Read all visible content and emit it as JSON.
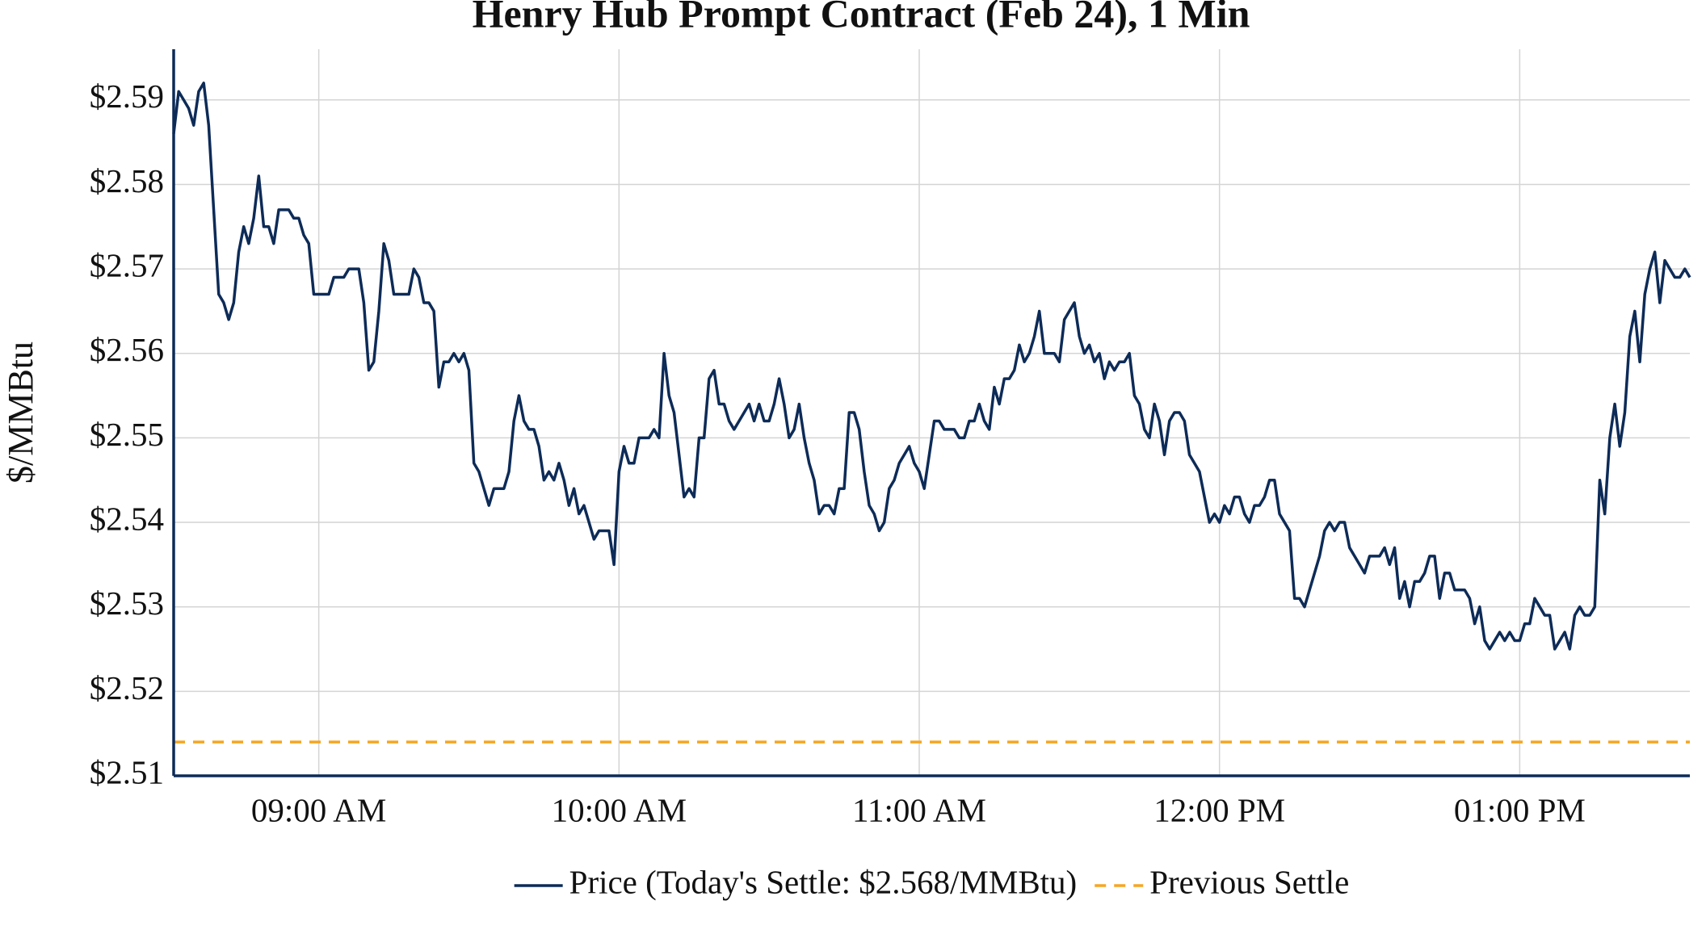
{
  "chart_data": {
    "type": "line",
    "title": "Henry Hub Prompt Contract (Feb 24), 1 Min",
    "y_label": "$/MMBtu",
    "x": [
      "08:31",
      "08:32",
      "08:33",
      "08:34",
      "08:35",
      "08:36",
      "08:37",
      "08:38",
      "08:39",
      "08:40",
      "08:41",
      "08:42",
      "08:43",
      "08:44",
      "08:45",
      "08:46",
      "08:47",
      "08:48",
      "08:49",
      "08:50",
      "08:51",
      "08:52",
      "08:53",
      "08:54",
      "08:55",
      "08:56",
      "08:57",
      "08:58",
      "08:59",
      "09:00",
      "09:01",
      "09:02",
      "09:03",
      "09:04",
      "09:05",
      "09:06",
      "09:07",
      "09:08",
      "09:09",
      "09:10",
      "09:11",
      "09:12",
      "09:13",
      "09:14",
      "09:15",
      "09:16",
      "09:17",
      "09:18",
      "09:19",
      "09:20",
      "09:21",
      "09:22",
      "09:23",
      "09:24",
      "09:25",
      "09:26",
      "09:27",
      "09:28",
      "09:29",
      "09:30",
      "09:31",
      "09:32",
      "09:33",
      "09:34",
      "09:35",
      "09:36",
      "09:37",
      "09:38",
      "09:39",
      "09:40",
      "09:41",
      "09:42",
      "09:43",
      "09:44",
      "09:45",
      "09:46",
      "09:47",
      "09:48",
      "09:49",
      "09:50",
      "09:51",
      "09:52",
      "09:53",
      "09:54",
      "09:55",
      "09:56",
      "09:57",
      "09:58",
      "09:59",
      "10:00",
      "10:01",
      "10:02",
      "10:03",
      "10:04",
      "10:05",
      "10:06",
      "10:07",
      "10:08",
      "10:09",
      "10:10",
      "10:11",
      "10:12",
      "10:13",
      "10:14",
      "10:15",
      "10:16",
      "10:17",
      "10:18",
      "10:19",
      "10:20",
      "10:21",
      "10:22",
      "10:23",
      "10:24",
      "10:25",
      "10:26",
      "10:27",
      "10:28",
      "10:29",
      "10:30",
      "10:31",
      "10:32",
      "10:33",
      "10:34",
      "10:35",
      "10:36",
      "10:37",
      "10:38",
      "10:39",
      "10:40",
      "10:41",
      "10:42",
      "10:43",
      "10:44",
      "10:45",
      "10:46",
      "10:47",
      "10:48",
      "10:49",
      "10:50",
      "10:51",
      "10:52",
      "10:53",
      "10:54",
      "10:55",
      "10:56",
      "10:57",
      "10:58",
      "10:59",
      "11:00",
      "11:01",
      "11:02",
      "11:03",
      "11:04",
      "11:05",
      "11:06",
      "11:07",
      "11:08",
      "11:09",
      "11:10",
      "11:11",
      "11:12",
      "11:13",
      "11:14",
      "11:15",
      "11:16",
      "11:17",
      "11:18",
      "11:19",
      "11:20",
      "11:21",
      "11:22",
      "11:23",
      "11:24",
      "11:25",
      "11:26",
      "11:27",
      "11:28",
      "11:29",
      "11:30",
      "11:31",
      "11:32",
      "11:33",
      "11:34",
      "11:35",
      "11:36",
      "11:37",
      "11:38",
      "11:39",
      "11:40",
      "11:41",
      "11:42",
      "11:43",
      "11:44",
      "11:45",
      "11:46",
      "11:47",
      "11:48",
      "11:49",
      "11:50",
      "11:51",
      "11:52",
      "11:53",
      "11:54",
      "11:55",
      "11:56",
      "11:57",
      "11:58",
      "11:59",
      "12:00",
      "12:01",
      "12:02",
      "12:03",
      "12:04",
      "12:05",
      "12:06",
      "12:07",
      "12:08",
      "12:09",
      "12:10",
      "12:11",
      "12:12",
      "12:13",
      "12:14",
      "12:15",
      "12:16",
      "12:17",
      "12:18",
      "12:19",
      "12:20",
      "12:21",
      "12:22",
      "12:23",
      "12:24",
      "12:25",
      "12:26",
      "12:27",
      "12:28",
      "12:29",
      "12:30",
      "12:31",
      "12:32",
      "12:33",
      "12:34",
      "12:35",
      "12:36",
      "12:37",
      "12:38",
      "12:39",
      "12:40",
      "12:41",
      "12:42",
      "12:43",
      "12:44",
      "12:45",
      "12:46",
      "12:47",
      "12:48",
      "12:49",
      "12:50",
      "12:51",
      "12:52",
      "12:53",
      "12:54",
      "12:55",
      "12:56",
      "12:57",
      "12:58",
      "12:59",
      "13:00",
      "13:01",
      "13:02",
      "13:03",
      "13:04",
      "13:05",
      "13:06",
      "13:07",
      "13:08",
      "13:09",
      "13:10",
      "13:11",
      "13:12",
      "13:13",
      "13:14",
      "13:15",
      "13:16",
      "13:17",
      "13:18",
      "13:19",
      "13:20",
      "13:21",
      "13:22",
      "13:23",
      "13:24",
      "13:25",
      "13:26",
      "13:27",
      "13:28",
      "13:29",
      "13:30",
      "13:31",
      "13:32",
      "13:33",
      "13:34"
    ],
    "series": [
      {
        "name": "Price (Today's Settle: $2.568/MMBtu)",
        "color": "#0d2b57",
        "values": [
          2.586,
          2.591,
          2.59,
          2.589,
          2.587,
          2.591,
          2.592,
          2.587,
          2.577,
          2.567,
          2.566,
          2.564,
          2.566,
          2.572,
          2.575,
          2.573,
          2.576,
          2.581,
          2.575,
          2.575,
          2.573,
          2.577,
          2.577,
          2.577,
          2.576,
          2.576,
          2.574,
          2.573,
          2.567,
          2.567,
          2.567,
          2.567,
          2.569,
          2.569,
          2.569,
          2.57,
          2.57,
          2.57,
          2.566,
          2.558,
          2.559,
          2.565,
          2.573,
          2.571,
          2.567,
          2.567,
          2.567,
          2.567,
          2.57,
          2.569,
          2.566,
          2.566,
          2.565,
          2.556,
          2.559,
          2.559,
          2.56,
          2.559,
          2.56,
          2.558,
          2.547,
          2.546,
          2.544,
          2.542,
          2.544,
          2.544,
          2.544,
          2.546,
          2.552,
          2.555,
          2.552,
          2.551,
          2.551,
          2.549,
          2.545,
          2.546,
          2.545,
          2.547,
          2.545,
          2.542,
          2.544,
          2.541,
          2.542,
          2.54,
          2.538,
          2.539,
          2.539,
          2.539,
          2.535,
          2.546,
          2.549,
          2.547,
          2.547,
          2.55,
          2.55,
          2.55,
          2.551,
          2.55,
          2.56,
          2.555,
          2.553,
          2.548,
          2.543,
          2.544,
          2.543,
          2.55,
          2.55,
          2.557,
          2.558,
          2.554,
          2.554,
          2.552,
          2.551,
          2.552,
          2.553,
          2.554,
          2.552,
          2.554,
          2.552,
          2.552,
          2.554,
          2.557,
          2.554,
          2.55,
          2.551,
          2.554,
          2.55,
          2.547,
          2.545,
          2.541,
          2.542,
          2.542,
          2.541,
          2.544,
          2.544,
          2.553,
          2.553,
          2.551,
          2.546,
          2.542,
          2.541,
          2.539,
          2.54,
          2.544,
          2.545,
          2.547,
          2.548,
          2.549,
          2.547,
          2.546,
          2.544,
          2.548,
          2.552,
          2.552,
          2.551,
          2.551,
          2.551,
          2.55,
          2.55,
          2.552,
          2.552,
          2.554,
          2.552,
          2.551,
          2.556,
          2.554,
          2.557,
          2.557,
          2.558,
          2.561,
          2.559,
          2.56,
          2.562,
          2.565,
          2.56,
          2.56,
          2.56,
          2.559,
          2.564,
          2.565,
          2.566,
          2.562,
          2.56,
          2.561,
          2.559,
          2.56,
          2.557,
          2.559,
          2.558,
          2.559,
          2.559,
          2.56,
          2.555,
          2.554,
          2.551,
          2.55,
          2.554,
          2.552,
          2.548,
          2.552,
          2.553,
          2.553,
          2.552,
          2.548,
          2.547,
          2.546,
          2.543,
          2.54,
          2.541,
          2.54,
          2.542,
          2.541,
          2.543,
          2.543,
          2.541,
          2.54,
          2.542,
          2.542,
          2.543,
          2.545,
          2.545,
          2.541,
          2.54,
          2.539,
          2.531,
          2.531,
          2.53,
          2.532,
          2.534,
          2.536,
          2.539,
          2.54,
          2.539,
          2.54,
          2.54,
          2.537,
          2.536,
          2.535,
          2.534,
          2.536,
          2.536,
          2.536,
          2.537,
          2.535,
          2.537,
          2.531,
          2.533,
          2.53,
          2.533,
          2.533,
          2.534,
          2.536,
          2.536,
          2.531,
          2.534,
          2.534,
          2.532,
          2.532,
          2.532,
          2.531,
          2.528,
          2.53,
          2.526,
          2.525,
          2.526,
          2.527,
          2.526,
          2.527,
          2.526,
          2.526,
          2.528,
          2.528,
          2.531,
          2.53,
          2.529,
          2.529,
          2.525,
          2.526,
          2.527,
          2.525,
          2.529,
          2.53,
          2.529,
          2.529,
          2.53,
          2.545,
          2.541,
          2.55,
          2.554,
          2.549,
          2.553,
          2.562,
          2.565,
          2.559,
          2.567,
          2.57,
          2.572,
          2.566,
          2.571,
          2.57,
          2.569,
          2.569,
          2.57,
          2.569
        ]
      }
    ],
    "reference_lines": [
      {
        "name": "Previous Settle",
        "value": 2.514,
        "color": "#f5a623",
        "style": "dashed"
      }
    ],
    "xlim": [
      "08:31",
      "13:34"
    ],
    "xticks": [
      {
        "value": "09:00",
        "label": "09:00 AM"
      },
      {
        "value": "10:00",
        "label": "10:00 AM"
      },
      {
        "value": "11:00",
        "label": "11:00 AM"
      },
      {
        "value": "12:00",
        "label": "12:00 PM"
      },
      {
        "value": "13:00",
        "label": "01:00 PM"
      }
    ],
    "ylim": [
      2.51,
      2.596
    ],
    "yticks": [
      {
        "value": 2.51,
        "label": "$2.51"
      },
      {
        "value": 2.52,
        "label": "$2.52"
      },
      {
        "value": 2.53,
        "label": "$2.53"
      },
      {
        "value": 2.54,
        "label": "$2.54"
      },
      {
        "value": 2.55,
        "label": "$2.55"
      },
      {
        "value": 2.56,
        "label": "$2.56"
      },
      {
        "value": 2.57,
        "label": "$2.57"
      },
      {
        "value": 2.58,
        "label": "$2.58"
      },
      {
        "value": 2.59,
        "label": "$2.59"
      }
    ],
    "grid": true,
    "legend": "bottom"
  }
}
